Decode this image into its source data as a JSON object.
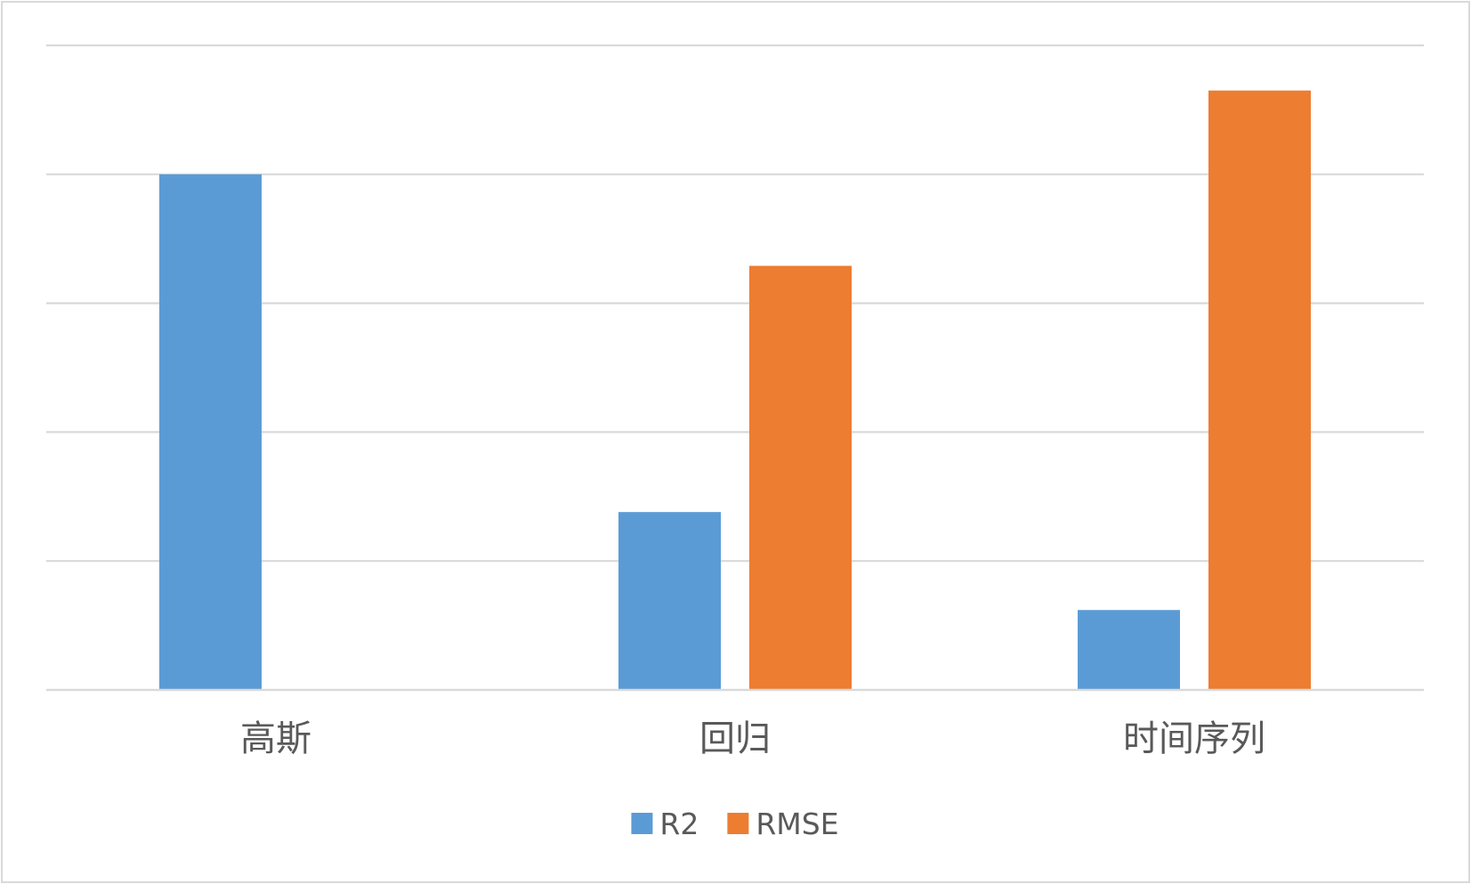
{
  "chart_data": {
    "type": "bar",
    "categories": [
      "高斯",
      "回归",
      "时间序列"
    ],
    "series": [
      {
        "name": "R2",
        "values": [
          4.0,
          1.38,
          0.62
        ],
        "color": "#5b9bd5"
      },
      {
        "name": "RMSE",
        "values": [
          0,
          3.29,
          4.65
        ],
        "color": "#ed7d31"
      }
    ],
    "ylim": [
      0,
      5
    ],
    "gridlines": 5,
    "grid": true,
    "legend": "bottom",
    "title": "",
    "xlabel": "",
    "ylabel": ""
  }
}
